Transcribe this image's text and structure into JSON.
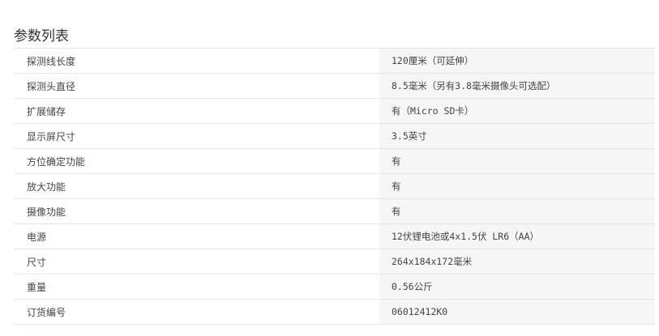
{
  "title": "参数列表",
  "rows": [
    {
      "label": "探测线长度",
      "value": "120厘米（可延伸）"
    },
    {
      "label": "探测头直径",
      "value": "8.5毫米（另有3.8毫米摄像头可选配）"
    },
    {
      "label": "扩展储存",
      "value": "有（Micro SD卡）"
    },
    {
      "label": "显示屏尺寸",
      "value": "3.5英寸"
    },
    {
      "label": "方位确定功能",
      "value": "有"
    },
    {
      "label": "放大功能",
      "value": "有"
    },
    {
      "label": "摄像功能",
      "value": "有"
    },
    {
      "label": "电源",
      "value": "12伏锂电池或4x1.5伏 LR6（AA）"
    },
    {
      "label": "尺寸",
      "value": "264x184x172毫米"
    },
    {
      "label": "重量",
      "value": "0.56公斤"
    },
    {
      "label": "订货编号",
      "value": "06012412K0"
    }
  ]
}
